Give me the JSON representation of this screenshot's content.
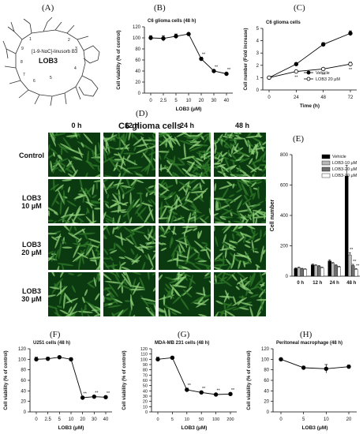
{
  "panels": {
    "A": "(A)",
    "B": "(B)",
    "C": "(C)",
    "D": "(D)",
    "E": "(E)",
    "F": "(F)",
    "G": "(G)",
    "H": "(H)"
  },
  "structure": {
    "name": "[1-9-NαC]-linusorb B3",
    "label": "LOB3",
    "atom_numbers": [
      "1",
      "2",
      "3",
      "4",
      "5",
      "6",
      "7",
      "8",
      "9"
    ]
  },
  "micrograph": {
    "title": "C6 glioma cells",
    "columns": [
      "0 h",
      "12 h",
      "24 h",
      "48 h"
    ],
    "rows": [
      "Control",
      "LOB3\n10 μM",
      "LOB3\n20 μM",
      "LOB3\n30 μM"
    ],
    "row_lines": [
      [
        "Control"
      ],
      [
        "LOB3",
        "10 μM"
      ],
      [
        "LOB3",
        "20 μM"
      ],
      [
        "LOB3",
        "30 μM"
      ]
    ],
    "colors": {
      "dark": "#0c3a10",
      "mid": "#2f7a2a",
      "light": "#8fd27a"
    },
    "cell_density": [
      [
        0.35,
        0.5,
        0.7,
        1.0
      ],
      [
        0.35,
        0.4,
        0.45,
        0.55
      ],
      [
        0.3,
        0.35,
        0.35,
        0.4
      ],
      [
        0.3,
        0.3,
        0.3,
        0.35
      ]
    ]
  },
  "chart_data": [
    {
      "id": "B",
      "type": "line",
      "title": "C6 glioma cells (48 h)",
      "xlabel": "LOB3 (μM)",
      "ylabel": "Cell viability (% of control)",
      "categories": [
        "0",
        "2.5",
        "5",
        "10",
        "20",
        "30",
        "40"
      ],
      "series": [
        {
          "values": [
            100,
            99,
            103,
            107,
            62,
            40,
            35
          ],
          "errors": [
            4,
            5,
            4,
            2,
            3,
            2,
            2
          ],
          "marker": "filled-circle"
        }
      ],
      "annotations": [
        "",
        "",
        "",
        "",
        "**",
        "**",
        "**"
      ],
      "ylim": [
        0,
        120
      ],
      "yticks": [
        0,
        20,
        40,
        60,
        80,
        100,
        120
      ]
    },
    {
      "id": "C",
      "type": "line",
      "title": "C6 glioma cells",
      "xlabel": "Time (h)",
      "ylabel": "Cell number (Fold increase)",
      "categories": [
        "0",
        "24",
        "48",
        "72"
      ],
      "series": [
        {
          "name": "Vehicle",
          "values": [
            1.0,
            2.1,
            3.7,
            4.6
          ],
          "errors": [
            0.05,
            0.1,
            0.15,
            0.2
          ],
          "marker": "filled-circle"
        },
        {
          "name": "LOB3 20 μM",
          "values": [
            1.0,
            1.5,
            1.7,
            2.1
          ],
          "errors": [
            0.05,
            0.05,
            0.1,
            0.15
          ],
          "marker": "open-circle"
        }
      ],
      "annotations": [
        "",
        "**",
        "**",
        "**"
      ],
      "ylim": [
        0,
        5
      ],
      "yticks": [
        0,
        1,
        2,
        3,
        4,
        5
      ],
      "legend": "bottom-right"
    },
    {
      "id": "E",
      "type": "bar",
      "xlabel": "",
      "ylabel": "Cell number",
      "categories": [
        "0 h",
        "12 h",
        "24 h",
        "48 h"
      ],
      "series": [
        {
          "name": "Vehicle",
          "values": [
            50,
            75,
            100,
            660
          ],
          "errors": [
            5,
            5,
            8,
            70
          ],
          "color": "#000000"
        },
        {
          "name": "LOB3-10 μM",
          "values": [
            55,
            70,
            85,
            140
          ],
          "errors": [
            5,
            5,
            5,
            15
          ],
          "color": "#b8b8b8"
        },
        {
          "name": "LOB3-20 μM",
          "values": [
            48,
            65,
            70,
            70
          ],
          "errors": [
            4,
            5,
            5,
            8
          ],
          "color": "#6e6e6e"
        },
        {
          "name": "LOB3-30 μM",
          "values": [
            45,
            55,
            60,
            45
          ],
          "errors": [
            4,
            4,
            5,
            5
          ],
          "color": "#ffffff"
        }
      ],
      "annotations_48h": [
        "",
        "**",
        "**",
        "**"
      ],
      "ylim": [
        0,
        800
      ],
      "yticks": [
        0,
        200,
        400,
        600,
        800
      ],
      "legend": "top-right"
    },
    {
      "id": "F",
      "type": "line",
      "title": "U251 cells (48 h)",
      "xlabel": "LOB3 (μM)",
      "ylabel": "Cell viability (% of control)",
      "categories": [
        "0",
        "2.5",
        "5",
        "10",
        "20",
        "30",
        "40"
      ],
      "series": [
        {
          "values": [
            100,
            101,
            104,
            100,
            27,
            29,
            28
          ],
          "errors": [
            4,
            3,
            2,
            3,
            2,
            2,
            2
          ],
          "marker": "filled-circle"
        }
      ],
      "annotations": [
        "",
        "",
        "",
        "",
        "**",
        "**",
        "**"
      ],
      "ylim": [
        0,
        120
      ],
      "yticks": [
        0,
        20,
        40,
        60,
        80,
        100,
        120
      ]
    },
    {
      "id": "G",
      "type": "line",
      "title": "MDA-MB 231 cells (48 h)",
      "xlabel": "LOB3 (μM)",
      "ylabel": "Cell viability (% of control)",
      "categories": [
        "0",
        "5",
        "10",
        "50",
        "100",
        "200"
      ],
      "series": [
        {
          "values": [
            100,
            103,
            42,
            37,
            33,
            34
          ],
          "errors": [
            4,
            2,
            3,
            2,
            2,
            2
          ],
          "marker": "filled-circle"
        }
      ],
      "annotations": [
        "",
        "",
        "**",
        "**",
        "**",
        "**"
      ],
      "ylim": [
        0,
        120
      ],
      "yticks": [
        0,
        10,
        20,
        30,
        40,
        50,
        60,
        70,
        80,
        90,
        100,
        110,
        120
      ]
    },
    {
      "id": "H",
      "type": "line",
      "title": "Peritoneal macrophage (48 h)",
      "xlabel": "LOB3 (μM)",
      "ylabel": "Cell viability (% of control)",
      "categories": [
        "0",
        "5",
        "10",
        "20"
      ],
      "series": [
        {
          "values": [
            100,
            84,
            82,
            86
          ],
          "errors": [
            2,
            3,
            8,
            3
          ],
          "marker": "filled-circle"
        }
      ],
      "annotations": [
        "",
        "",
        "",
        ""
      ],
      "ylim": [
        0,
        120
      ],
      "yticks": [
        0,
        20,
        40,
        60,
        80,
        100,
        120
      ]
    }
  ]
}
